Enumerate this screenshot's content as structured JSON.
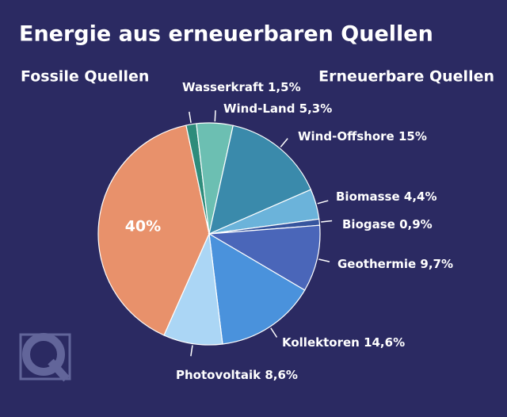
{
  "chart_data": {
    "type": "pie",
    "title": "Energie aus erneuerbaren Quellen",
    "group_labels": [
      "Fossile Quellen",
      "Erneuerbare Quellen"
    ],
    "categories": [
      null,
      "Wasserkraft",
      "Wind-Land",
      "Wind-Offshore",
      "Biomasse",
      "Biogase",
      "Geothermie",
      "Kollektoren",
      "Photovoltaik"
    ],
    "values": [
      40,
      1.5,
      5.3,
      15,
      4.4,
      0.9,
      9.7,
      14.6,
      8.6
    ],
    "value_labels": [
      "40%",
      "1,5%",
      "5,3%",
      "15%",
      "4,4%",
      "0,9%",
      "9,7%",
      "14,6%",
      "8,6%"
    ],
    "colors": [
      "#e8916b",
      "#2e8c7b",
      "#6cbfb2",
      "#3a8aab",
      "#6bb3da",
      "#36559e",
      "#4a66b9",
      "#4a92dc",
      "#abd6f5"
    ]
  }
}
